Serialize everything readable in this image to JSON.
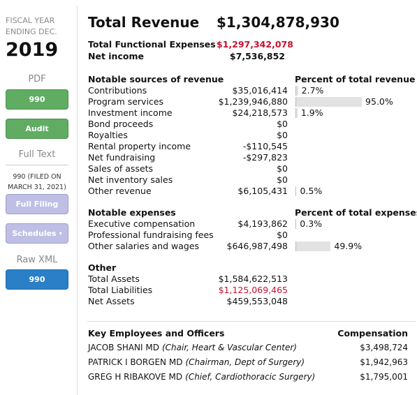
{
  "sidebar": {
    "fiscal_year_label": "FISCAL YEAR ENDING DEC.",
    "year": "2019",
    "pdf_label": "PDF",
    "pdf_buttons": [
      "990",
      "Audit"
    ],
    "full_text_label": "Full Text",
    "filing_note": "990 (FILED ON MARCH 31, 2021)",
    "full_text_buttons": [
      "Full Filing",
      "Schedules"
    ],
    "raw_xml_label": "Raw XML",
    "raw_xml_buttons": [
      "990"
    ]
  },
  "summary": {
    "title": "Total Revenue",
    "total_revenue": "$1,304,878,930",
    "rows": [
      {
        "label": "Total Functional Expenses",
        "amount": "$1,297,342,078",
        "color": "#c8102e"
      },
      {
        "label": "Net income",
        "amount": "$7,536,852"
      }
    ]
  },
  "sections": [
    {
      "title": "Notable sources of revenue",
      "percent_title": "Percent of total revenue",
      "rows": [
        {
          "label": "Contributions",
          "amount": "$35,016,414",
          "percent": 2.7,
          "percent_label": "2.7%"
        },
        {
          "label": "Program services",
          "amount": "$1,239,946,880",
          "percent": 95.0,
          "percent_label": "95.0%"
        },
        {
          "label": "Investment income",
          "amount": "$24,218,573",
          "percent": 1.9,
          "percent_label": "1.9%"
        },
        {
          "label": "Bond proceeds",
          "amount": "$0"
        },
        {
          "label": "Royalties",
          "amount": "$0"
        },
        {
          "label": "Rental property income",
          "amount": "-$110,545"
        },
        {
          "label": "Net fundraising",
          "amount": "-$297,823"
        },
        {
          "label": "Sales of assets",
          "amount": "$0"
        },
        {
          "label": "Net inventory sales",
          "amount": "$0"
        },
        {
          "label": "Other revenue",
          "amount": "$6,105,431",
          "percent": 0.5,
          "percent_label": "0.5%"
        }
      ]
    },
    {
      "title": "Notable expenses",
      "percent_title": "Percent of total expenses",
      "rows": [
        {
          "label": "Executive compensation",
          "amount": "$4,193,862",
          "percent": 0.3,
          "percent_label": "0.3%"
        },
        {
          "label": "Professional fundraising fees",
          "amount": "$0"
        },
        {
          "label": "Other salaries and wages",
          "amount": "$646,987,498",
          "percent": 49.9,
          "percent_label": "49.9%"
        }
      ]
    },
    {
      "title": "Other",
      "rows": [
        {
          "label": "Total Assets",
          "amount": "$1,584,622,513"
        },
        {
          "label": "Total Liabilities",
          "amount": "$1,125,069,465",
          "color": "#c8102e"
        },
        {
          "label": "Net Assets",
          "amount": "$459,553,048"
        }
      ]
    }
  ],
  "employees": {
    "title": "Key Employees and Officers",
    "compensation_title": "Compensation",
    "rows": [
      {
        "name": "JACOB SHANI MD",
        "title": "(Chair, Heart & Vascular Center)",
        "compensation": "$3,498,724"
      },
      {
        "name": "PATRICK I BORGEN MD",
        "title": "(Chairman, Dept of Surgery)",
        "compensation": "$1,942,963"
      },
      {
        "name": "GREG H RIBAKOVE MD",
        "title": "(Chief, Cardiothoracic Surgery)",
        "compensation": "$1,795,001"
      }
    ]
  }
}
